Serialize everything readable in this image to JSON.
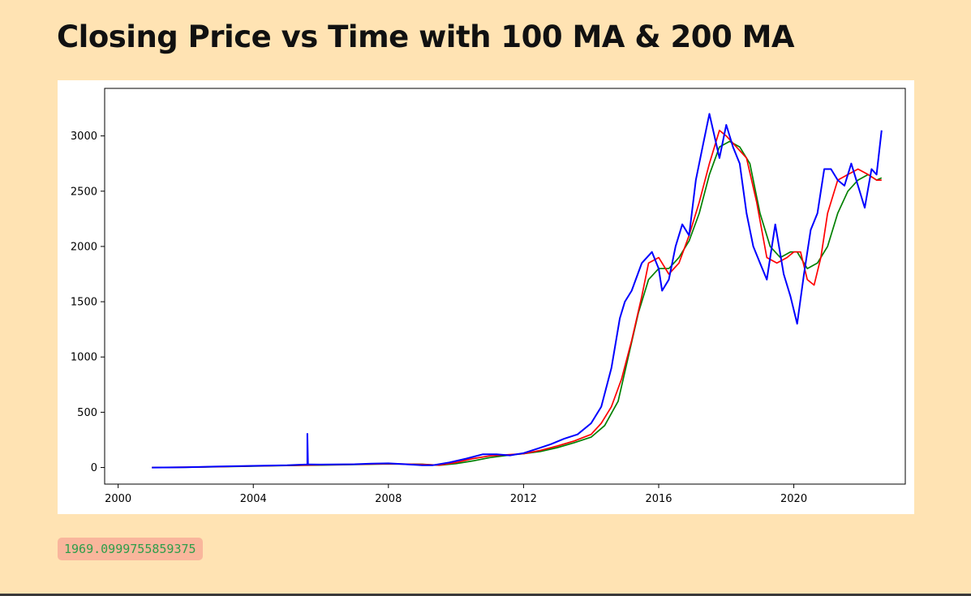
{
  "page": {
    "title": "Closing Price vs Time with 100 MA & 200 MA",
    "code_value": "1969.0999755859375"
  },
  "colors": {
    "background": "#ffe3b3",
    "price": "#0000ff",
    "ma100": "#ff0000",
    "ma200": "#008000",
    "code_text": "#2e9e4a",
    "code_bg": "#f9b69c"
  },
  "chart_data": {
    "type": "line",
    "title": "",
    "xlabel": "",
    "ylabel": "",
    "xlim": [
      1999.6,
      2023.3
    ],
    "ylim": [
      -150,
      3430
    ],
    "x_ticks": [
      2000,
      2004,
      2008,
      2012,
      2016,
      2020
    ],
    "y_ticks": [
      0,
      500,
      1000,
      1500,
      2000,
      2500,
      3000
    ],
    "grid": false,
    "legend": "none",
    "series": [
      {
        "key": "price",
        "x": [
          2001.0,
          2002.0,
          2003.0,
          2004.0,
          2005.0,
          2005.6,
          2005.6,
          2005.62,
          2006.0,
          2007.0,
          2007.5,
          2008.0,
          2008.5,
          2009.0,
          2009.3,
          2009.8,
          2010.3,
          2010.8,
          2011.2,
          2011.6,
          2012.0,
          2012.4,
          2012.8,
          2013.2,
          2013.6,
          2014.0,
          2014.3,
          2014.6,
          2014.85,
          2015.0,
          2015.2,
          2015.5,
          2015.8,
          2016.0,
          2016.1,
          2016.3,
          2016.5,
          2016.7,
          2016.9,
          2017.1,
          2017.3,
          2017.5,
          2017.8,
          2018.0,
          2018.2,
          2018.4,
          2018.6,
          2018.8,
          2019.0,
          2019.2,
          2019.45,
          2019.7,
          2019.9,
          2020.1,
          2020.3,
          2020.5,
          2020.7,
          2020.9,
          2021.1,
          2021.3,
          2021.5,
          2021.7,
          2021.9,
          2022.1,
          2022.3,
          2022.45,
          2022.6
        ],
        "values": [
          0,
          2,
          10,
          15,
          20,
          28,
          305,
          28,
          27,
          30,
          35,
          38,
          30,
          20,
          20,
          45,
          80,
          120,
          120,
          110,
          130,
          170,
          210,
          260,
          300,
          400,
          550,
          900,
          1350,
          1500,
          1600,
          1850,
          1950,
          1800,
          1600,
          1700,
          2000,
          2200,
          2100,
          2600,
          2900,
          3200,
          2800,
          3100,
          2900,
          2750,
          2300,
          2000,
          1850,
          1700,
          2200,
          1750,
          1550,
          1300,
          1750,
          2150,
          2300,
          2700,
          2700,
          2600,
          2550,
          2750,
          2550,
          2350,
          2700,
          2650,
          3050
        ]
      },
      {
        "key": "ma100",
        "x": [
          2001.0,
          2002.0,
          2003.0,
          2004.0,
          2005.0,
          2006.0,
          2007.0,
          2008.0,
          2009.0,
          2009.5,
          2010.0,
          2010.5,
          2011.0,
          2011.5,
          2012.0,
          2012.5,
          2013.0,
          2013.5,
          2014.0,
          2014.3,
          2014.6,
          2014.9,
          2015.2,
          2015.5,
          2015.7,
          2016.0,
          2016.3,
          2016.6,
          2016.9,
          2017.2,
          2017.5,
          2017.8,
          2018.0,
          2018.3,
          2018.6,
          2018.9,
          2019.2,
          2019.5,
          2019.8,
          2020.0,
          2020.2,
          2020.4,
          2020.6,
          2020.8,
          2021.0,
          2021.3,
          2021.6,
          2021.9,
          2022.2,
          2022.45,
          2022.6
        ],
        "values": [
          0,
          3,
          8,
          14,
          19,
          24,
          29,
          34,
          28,
          22,
          45,
          80,
          105,
          115,
          125,
          155,
          195,
          240,
          300,
          400,
          550,
          800,
          1150,
          1550,
          1850,
          1900,
          1750,
          1850,
          2100,
          2400,
          2750,
          3050,
          3000,
          2900,
          2800,
          2400,
          1900,
          1850,
          1900,
          1950,
          1950,
          1700,
          1650,
          1900,
          2300,
          2600,
          2650,
          2700,
          2650,
          2600,
          2600
        ]
      },
      {
        "key": "ma200",
        "x": [
          2001.0,
          2002.0,
          2003.0,
          2004.0,
          2005.0,
          2006.0,
          2007.0,
          2008.0,
          2009.0,
          2009.5,
          2010.0,
          2010.5,
          2011.0,
          2011.5,
          2012.0,
          2012.5,
          2013.0,
          2013.5,
          2014.0,
          2014.4,
          2014.8,
          2015.1,
          2015.4,
          2015.7,
          2016.0,
          2016.3,
          2016.6,
          2016.9,
          2017.2,
          2017.5,
          2017.8,
          2018.1,
          2018.4,
          2018.7,
          2019.0,
          2019.3,
          2019.6,
          2019.9,
          2020.1,
          2020.4,
          2020.7,
          2021.0,
          2021.3,
          2021.6,
          2021.9,
          2022.2,
          2022.45,
          2022.6
        ],
        "values": [
          0,
          2,
          6,
          12,
          17,
          22,
          27,
          32,
          30,
          20,
          35,
          60,
          90,
          110,
          125,
          145,
          180,
          225,
          275,
          380,
          600,
          1000,
          1400,
          1700,
          1800,
          1800,
          1900,
          2050,
          2300,
          2650,
          2900,
          2950,
          2900,
          2750,
          2300,
          2000,
          1900,
          1950,
          1950,
          1800,
          1850,
          2000,
          2300,
          2500,
          2600,
          2650,
          2600,
          2620
        ]
      }
    ]
  }
}
